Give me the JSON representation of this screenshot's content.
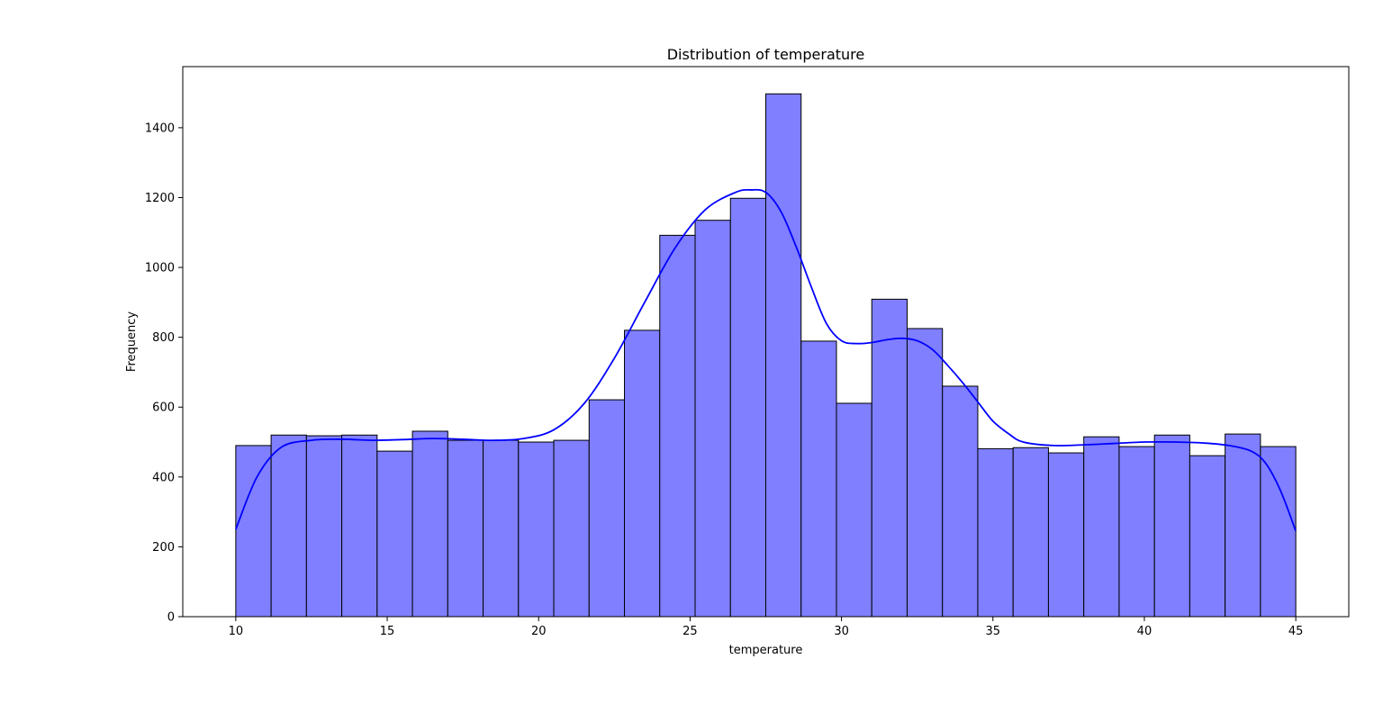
{
  "chart_data": {
    "type": "bar",
    "title": "Distribution of temperature",
    "xlabel": "temperature",
    "ylabel": "Frequency",
    "xlim": [
      8.25,
      46.75
    ],
    "ylim": [
      0,
      1575
    ],
    "x_ticks": [
      10,
      15,
      20,
      25,
      30,
      35,
      40,
      45
    ],
    "y_ticks": [
      0,
      200,
      400,
      600,
      800,
      1000,
      1200,
      1400
    ],
    "bins_range": [
      10,
      45
    ],
    "bin_count": 30,
    "values": [
      490,
      520,
      518,
      520,
      474,
      531,
      505,
      505,
      500,
      505,
      621,
      820,
      1092,
      1135,
      1198,
      1497,
      789,
      611,
      909,
      825,
      660,
      481,
      484,
      469,
      515,
      487,
      520,
      461,
      523,
      487
    ],
    "bar_color": "#7f7fff",
    "bar_edge_color": "#000000",
    "kde": {
      "name": "kde",
      "color": "#0000ff",
      "x": [
        10,
        10.7,
        11.5,
        12.5,
        13.5,
        14.5,
        15.5,
        16.5,
        17.5,
        18.5,
        19.5,
        20.5,
        21.5,
        22.5,
        23.5,
        24.5,
        25.5,
        26.5,
        27.0,
        27.5,
        28.0,
        28.5,
        29.0,
        29.5,
        30.0,
        30.5,
        31.0,
        31.5,
        32.0,
        32.5,
        33.0,
        33.5,
        34.0,
        34.5,
        35.0,
        35.5,
        36.0,
        37.0,
        38.0,
        39.0,
        40.0,
        41.0,
        42.0,
        42.8,
        43.5,
        44.0,
        44.5,
        45.0
      ],
      "y": [
        250,
        400,
        485,
        505,
        508,
        505,
        507,
        510,
        508,
        505,
        510,
        535,
        610,
        740,
        900,
        1055,
        1165,
        1215,
        1222,
        1215,
        1160,
        1060,
        945,
        840,
        790,
        782,
        785,
        793,
        797,
        790,
        765,
        720,
        670,
        615,
        560,
        525,
        500,
        490,
        492,
        496,
        500,
        500,
        497,
        490,
        475,
        440,
        360,
        245
      ]
    }
  }
}
